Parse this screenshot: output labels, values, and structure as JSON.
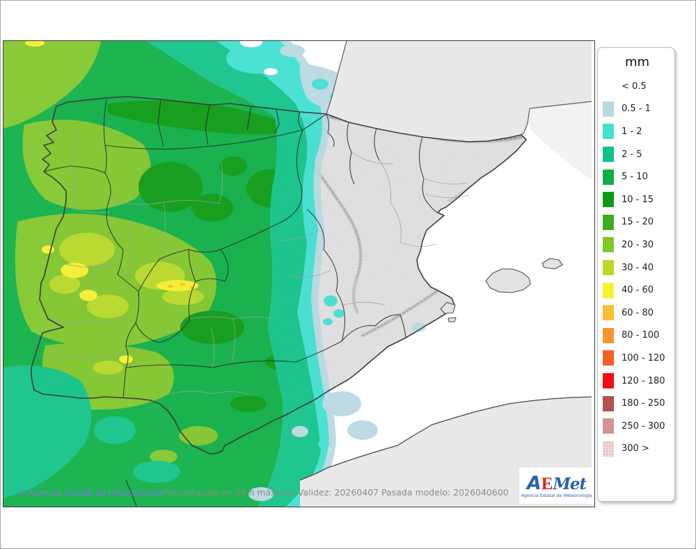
{
  "legend": {
    "title": "mm",
    "entries": [
      {
        "label": "< 0.5",
        "key": null
      },
      {
        "label": "0.5 - 1",
        "key": "r05_1"
      },
      {
        "label": "1 - 2",
        "key": "r1_2"
      },
      {
        "label": "2 - 5",
        "key": "r2_5"
      },
      {
        "label": "5 - 10",
        "key": "r5_10"
      },
      {
        "label": "10 - 15",
        "key": "r10_15"
      },
      {
        "label": "15 - 20",
        "key": "r15_20"
      },
      {
        "label": "20 - 30",
        "key": "r20_30"
      },
      {
        "label": "30 - 40",
        "key": "r30_40"
      },
      {
        "label": "40 - 60",
        "key": "r40_60"
      },
      {
        "label": "60 - 80",
        "key": "r60_80"
      },
      {
        "label": "80 - 100",
        "key": "r80_100"
      },
      {
        "label": "100 - 120",
        "key": "r100_120"
      },
      {
        "label": "120 - 180",
        "key": "r120_180"
      },
      {
        "label": "180 - 250",
        "key": "r180_250"
      },
      {
        "label": "250 - 300",
        "key": "r250_300"
      },
      {
        "label": "300 >",
        "key": "r300p",
        "speckled": true
      }
    ]
  },
  "captions": {
    "copyright": "© Agencia Estatal de Meteorología",
    "info": "Precipitación en 24 h máxima. Validez: 20260407 Pasada modelo: 2026040600"
  },
  "logo": {
    "a": "A",
    "e": "E",
    "met": "Met",
    "subtitle": "Agencia Estatal de Meteorología"
  },
  "map": {
    "palette": {
      "r05_1": "#b7d9e0",
      "r1_2": "#3fe0d0",
      "r2_5": "#0fc287",
      "r5_10": "#0caf45",
      "r10_15": "#0a9b11",
      "r15_20": "#3ead1b",
      "r20_30": "#7fc629",
      "r30_40": "#b8d926",
      "r40_60": "#f9f02b",
      "r60_80": "#fabc33",
      "r80_100": "#f9952e",
      "r100_120": "#f95e26",
      "r120_180": "#f70b10",
      "r180_250": "#b25150",
      "r250_300": "#d29394",
      "r300p": "#f2d8d8",
      "r300p_dot": "#d98f8f",
      "sea": "#ffffff",
      "foreign_land": "#e9e9e9",
      "gulf_sea": "#f2f2f2",
      "terrain": "#e2e2e2",
      "coast_line": "#3c3c3c",
      "region_line": "#2f2f2f",
      "province_line": "#9f9f9f",
      "logo_blue": "#2b5fae",
      "logo_red": "#d5281c",
      "copyright_color": "#7b7be0",
      "info_color": "#8a8a8a"
    }
  }
}
